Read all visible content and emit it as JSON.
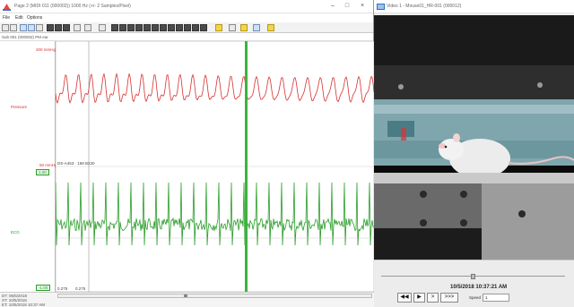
{
  "left_window": {
    "title": "Page 2 (MIDI 011 (000002)) 1000 Hz  (+/- 2 Samples/Pixel)",
    "menu": [
      "File",
      "Edit",
      "Options"
    ],
    "info_label": "Sub 001 (000002) PM ear",
    "pressure_channel": {
      "label": "Pressure",
      "top_label": "200 mmHg",
      "bottom_label": "50 mmHg",
      "color": "#d63030"
    },
    "ecg_channel": {
      "label": "ECG",
      "readout": "DS-A453 · 158 B230",
      "scale_top": "1.00",
      "scale_bottom": "-1.00",
      "color": "#2a9d2a"
    },
    "time_ticks": [
      "0.275",
      "0.275"
    ],
    "footer_lines": [
      "DT: 06/5/2018",
      "ST: 10/5/2018",
      "ET: 10/5/2018 10:37 AM"
    ]
  },
  "right_window": {
    "title": "Video 1 - Mouse01_HR-001 (000012)",
    "timestamp": "10/5/2018  10:37:21 AM",
    "buttons": {
      "rewind": "◀◀",
      "play": "▶",
      "step": ">",
      "fast": ">>>"
    },
    "speed_label": "Speed",
    "speed_value": "1"
  },
  "colors": {
    "cursor": "#3cb43c",
    "pressure": "#d63030",
    "ecg": "#2a9d2a"
  }
}
